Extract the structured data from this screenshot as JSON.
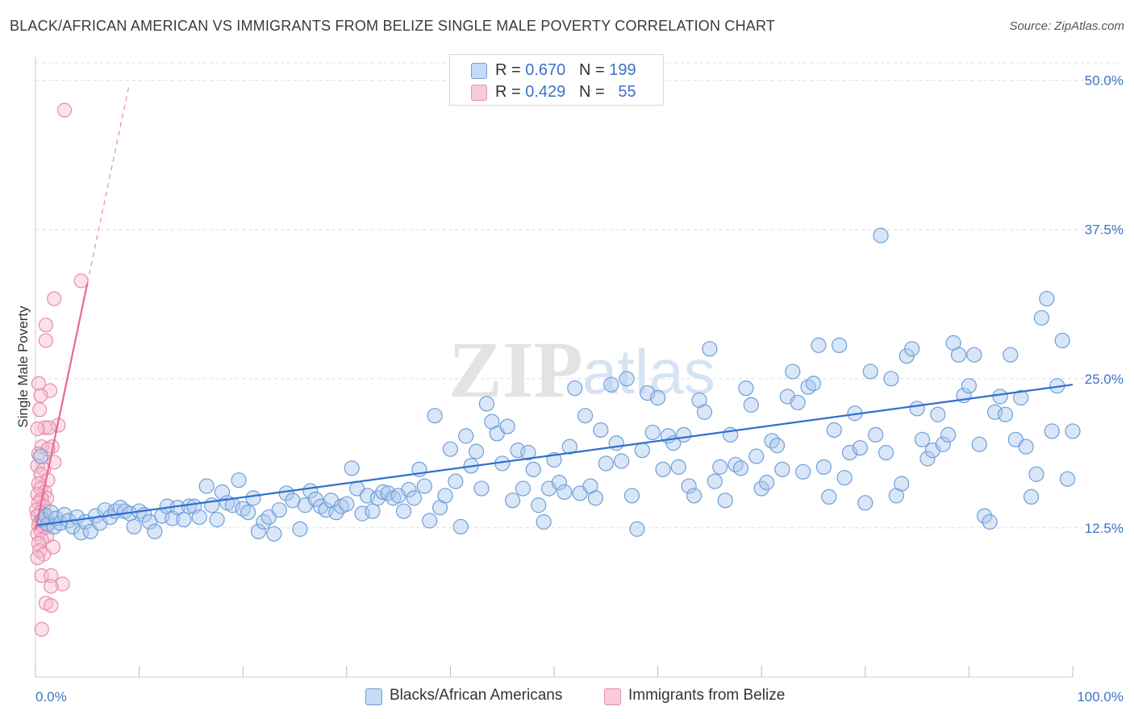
{
  "header": {
    "title": "BLACK/AFRICAN AMERICAN VS IMMIGRANTS FROM BELIZE SINGLE MALE POVERTY CORRELATION CHART",
    "source": "Source: ZipAtlas.com"
  },
  "watermark": {
    "part1": "ZIP",
    "part2": "atlas"
  },
  "legend": {
    "r_label": "R = ",
    "n_label": "N = ",
    "series1": {
      "r": "0.670",
      "n": "199"
    },
    "series2": {
      "r": "0.429",
      "n": "55"
    }
  },
  "colors": {
    "blue_fill": "#aac8ee",
    "blue_stroke": "#6e9fd8",
    "blue_line": "#2f6fcf",
    "pink_fill": "#f6bcd0",
    "pink_stroke": "#e98bab",
    "pink_line": "#e8679a",
    "axis_blue": "#3b73c6"
  },
  "chart_data": {
    "type": "scatter",
    "title": "BLACK/AFRICAN AMERICAN VS IMMIGRANTS FROM BELIZE SINGLE MALE POVERTY CORRELATION CHART",
    "xlabel": "",
    "ylabel": "Single Male Poverty",
    "xlim": [
      0,
      100
    ],
    "ylim": [
      0,
      52
    ],
    "x_tick_labels": [
      "0.0%",
      "100.0%"
    ],
    "y_ticks": [
      12.5,
      25.0,
      37.5,
      50.0
    ],
    "y_tick_labels": [
      "12.5%",
      "25.0%",
      "37.5%",
      "50.0%"
    ],
    "grid": true,
    "series": [
      {
        "name": "Blacks/African Americans",
        "trend": {
          "x": [
            0,
            100
          ],
          "y": [
            12.7,
            24.5
          ]
        },
        "points": [
          [
            0.5,
            18.5
          ],
          [
            0.7,
            13.2
          ],
          [
            1.0,
            13.5
          ],
          [
            1.2,
            12.8
          ],
          [
            1.5,
            13.8
          ],
          [
            1.8,
            12.6
          ],
          [
            2.0,
            13.3
          ],
          [
            2.4,
            12.9
          ],
          [
            2.8,
            13.6
          ],
          [
            3.2,
            13.1
          ],
          [
            3.6,
            12.6
          ],
          [
            4.0,
            13.4
          ],
          [
            4.4,
            12.1
          ],
          [
            4.8,
            13.0
          ],
          [
            5.3,
            12.2
          ],
          [
            5.8,
            13.5
          ],
          [
            6.2,
            12.9
          ],
          [
            6.7,
            14.0
          ],
          [
            7.2,
            13.4
          ],
          [
            7.7,
            13.9
          ],
          [
            8.2,
            14.2
          ],
          [
            8.6,
            13.9
          ],
          [
            9.1,
            13.7
          ],
          [
            9.5,
            12.6
          ],
          [
            10.0,
            13.9
          ],
          [
            10.5,
            13.6
          ],
          [
            11.0,
            13.0
          ],
          [
            11.5,
            12.2
          ],
          [
            12.2,
            13.5
          ],
          [
            12.7,
            14.3
          ],
          [
            13.2,
            13.3
          ],
          [
            13.7,
            14.2
          ],
          [
            14.3,
            13.2
          ],
          [
            14.8,
            14.3
          ],
          [
            15.3,
            14.3
          ],
          [
            15.8,
            13.4
          ],
          [
            16.5,
            16.0
          ],
          [
            17.0,
            14.4
          ],
          [
            17.5,
            13.2
          ],
          [
            18.0,
            15.5
          ],
          [
            18.5,
            14.6
          ],
          [
            19.0,
            14.4
          ],
          [
            19.6,
            16.5
          ],
          [
            20.0,
            14.1
          ],
          [
            20.5,
            13.8
          ],
          [
            21.0,
            15.0
          ],
          [
            21.5,
            12.2
          ],
          [
            22.0,
            13.0
          ],
          [
            22.5,
            13.4
          ],
          [
            23.0,
            12.0
          ],
          [
            23.5,
            14.0
          ],
          [
            24.2,
            15.4
          ],
          [
            24.8,
            14.8
          ],
          [
            25.5,
            12.4
          ],
          [
            26.0,
            14.4
          ],
          [
            26.5,
            15.6
          ],
          [
            27.0,
            14.9
          ],
          [
            27.5,
            14.3
          ],
          [
            28.0,
            14.0
          ],
          [
            28.5,
            14.8
          ],
          [
            29.0,
            13.8
          ],
          [
            29.5,
            14.3
          ],
          [
            30.0,
            14.5
          ],
          [
            30.5,
            17.5
          ],
          [
            31.0,
            15.8
          ],
          [
            31.5,
            13.7
          ],
          [
            32.0,
            15.2
          ],
          [
            32.5,
            13.9
          ],
          [
            33.0,
            15.0
          ],
          [
            33.5,
            15.5
          ],
          [
            34.0,
            15.4
          ],
          [
            34.5,
            15.0
          ],
          [
            35.0,
            15.2
          ],
          [
            35.5,
            13.9
          ],
          [
            36.0,
            15.7
          ],
          [
            36.5,
            15.0
          ],
          [
            37.0,
            17.4
          ],
          [
            37.5,
            16.0
          ],
          [
            38.0,
            13.1
          ],
          [
            38.5,
            21.9
          ],
          [
            39.0,
            14.2
          ],
          [
            39.5,
            15.2
          ],
          [
            40.0,
            19.1
          ],
          [
            40.5,
            16.4
          ],
          [
            41.0,
            12.6
          ],
          [
            41.5,
            20.2
          ],
          [
            42.0,
            17.7
          ],
          [
            42.5,
            18.9
          ],
          [
            43.0,
            15.8
          ],
          [
            43.5,
            22.9
          ],
          [
            44.0,
            21.4
          ],
          [
            44.5,
            20.4
          ],
          [
            45.0,
            17.9
          ],
          [
            45.5,
            21.0
          ],
          [
            46.0,
            14.8
          ],
          [
            46.5,
            19.0
          ],
          [
            47.0,
            15.8
          ],
          [
            47.5,
            18.8
          ],
          [
            48.0,
            17.4
          ],
          [
            48.5,
            14.4
          ],
          [
            49.0,
            13.0
          ],
          [
            49.5,
            15.8
          ],
          [
            50.0,
            18.2
          ],
          [
            50.5,
            16.3
          ],
          [
            51.0,
            15.5
          ],
          [
            51.5,
            19.3
          ],
          [
            52.0,
            24.2
          ],
          [
            52.5,
            15.4
          ],
          [
            53.0,
            21.9
          ],
          [
            53.5,
            16.0
          ],
          [
            54.0,
            15.0
          ],
          [
            54.5,
            20.7
          ],
          [
            55.0,
            17.9
          ],
          [
            55.5,
            24.5
          ],
          [
            56.0,
            19.6
          ],
          [
            56.5,
            18.1
          ],
          [
            57.0,
            25.0
          ],
          [
            57.5,
            15.2
          ],
          [
            58.0,
            12.4
          ],
          [
            58.5,
            19.0
          ],
          [
            59.0,
            23.8
          ],
          [
            59.5,
            20.5
          ],
          [
            60.0,
            23.4
          ],
          [
            60.5,
            17.4
          ],
          [
            61.0,
            20.2
          ],
          [
            61.5,
            19.6
          ],
          [
            62.0,
            17.6
          ],
          [
            62.5,
            20.3
          ],
          [
            63.0,
            16.0
          ],
          [
            63.5,
            15.2
          ],
          [
            64.0,
            23.2
          ],
          [
            64.5,
            22.2
          ],
          [
            65.0,
            27.5
          ],
          [
            65.5,
            16.4
          ],
          [
            66.0,
            17.6
          ],
          [
            66.5,
            14.8
          ],
          [
            67.0,
            20.3
          ],
          [
            67.5,
            17.8
          ],
          [
            68.0,
            17.5
          ],
          [
            68.5,
            24.2
          ],
          [
            69.0,
            22.8
          ],
          [
            69.5,
            18.5
          ],
          [
            70.0,
            15.8
          ],
          [
            70.5,
            16.3
          ],
          [
            71.0,
            19.8
          ],
          [
            71.5,
            19.4
          ],
          [
            72.0,
            17.4
          ],
          [
            72.5,
            23.5
          ],
          [
            73.0,
            25.6
          ],
          [
            73.5,
            23.0
          ],
          [
            74.0,
            17.2
          ],
          [
            74.5,
            24.3
          ],
          [
            75.0,
            24.6
          ],
          [
            75.5,
            27.8
          ],
          [
            76.0,
            17.6
          ],
          [
            76.5,
            15.1
          ],
          [
            77.0,
            20.7
          ],
          [
            77.5,
            27.8
          ],
          [
            78.0,
            16.7
          ],
          [
            78.5,
            18.8
          ],
          [
            79.0,
            22.1
          ],
          [
            79.5,
            19.2
          ],
          [
            80.0,
            14.6
          ],
          [
            80.5,
            25.6
          ],
          [
            81.0,
            20.3
          ],
          [
            81.5,
            37.0
          ],
          [
            82.0,
            18.8
          ],
          [
            82.5,
            25.0
          ],
          [
            83.0,
            15.2
          ],
          [
            83.5,
            16.2
          ],
          [
            84.0,
            26.9
          ],
          [
            84.5,
            27.5
          ],
          [
            85.0,
            22.5
          ],
          [
            85.5,
            19.9
          ],
          [
            86.0,
            18.3
          ],
          [
            86.5,
            19.0
          ],
          [
            87.0,
            22.0
          ],
          [
            87.5,
            19.5
          ],
          [
            88.0,
            20.3
          ],
          [
            88.5,
            28.0
          ],
          [
            89.0,
            27.0
          ],
          [
            89.5,
            23.6
          ],
          [
            90.0,
            24.4
          ],
          [
            90.5,
            27.0
          ],
          [
            91.0,
            19.5
          ],
          [
            91.5,
            13.5
          ],
          [
            92.0,
            13.0
          ],
          [
            92.5,
            22.2
          ],
          [
            93.0,
            23.5
          ],
          [
            93.5,
            22.0
          ],
          [
            94.0,
            27.0
          ],
          [
            94.5,
            19.9
          ],
          [
            95.0,
            23.4
          ],
          [
            95.5,
            19.3
          ],
          [
            96.0,
            15.1
          ],
          [
            96.5,
            17.0
          ],
          [
            97.0,
            30.1
          ],
          [
            97.5,
            31.7
          ],
          [
            98.0,
            20.6
          ],
          [
            98.5,
            24.4
          ],
          [
            99.0,
            28.2
          ],
          [
            99.5,
            16.6
          ],
          [
            100.0,
            20.6
          ]
        ]
      },
      {
        "name": "Immigrants from Belize",
        "trend": {
          "x": [
            0,
            5
          ],
          "y": [
            12.3,
            33.0
          ]
        },
        "trend_dashed_extension": {
          "x": [
            5,
            9
          ],
          "y": [
            33.0,
            49.5
          ]
        },
        "points": [
          [
            2.8,
            47.5
          ],
          [
            4.4,
            33.2
          ],
          [
            1.8,
            31.7
          ],
          [
            1.0,
            29.5
          ],
          [
            1.0,
            28.2
          ],
          [
            0.3,
            24.6
          ],
          [
            1.4,
            24.0
          ],
          [
            0.5,
            23.6
          ],
          [
            0.4,
            22.4
          ],
          [
            2.2,
            21.1
          ],
          [
            0.9,
            20.9
          ],
          [
            1.3,
            20.9
          ],
          [
            0.2,
            20.8
          ],
          [
            1.6,
            19.3
          ],
          [
            0.6,
            19.3
          ],
          [
            1.2,
            19.1
          ],
          [
            0.3,
            18.7
          ],
          [
            1.8,
            18.0
          ],
          [
            0.2,
            17.7
          ],
          [
            0.8,
            17.4
          ],
          [
            0.5,
            17.0
          ],
          [
            1.2,
            16.5
          ],
          [
            0.3,
            16.2
          ],
          [
            0.5,
            15.8
          ],
          [
            0.9,
            15.5
          ],
          [
            0.2,
            15.3
          ],
          [
            1.1,
            15.0
          ],
          [
            0.6,
            14.9
          ],
          [
            0.3,
            14.6
          ],
          [
            0.8,
            14.3
          ],
          [
            0.1,
            14.0
          ],
          [
            0.5,
            13.8
          ],
          [
            1.0,
            13.6
          ],
          [
            0.2,
            13.5
          ],
          [
            0.7,
            13.2
          ],
          [
            0.4,
            13.0
          ],
          [
            1.3,
            12.9
          ],
          [
            0.3,
            12.7
          ],
          [
            0.9,
            12.5
          ],
          [
            0.5,
            12.3
          ],
          [
            0.2,
            12.0
          ],
          [
            1.1,
            11.8
          ],
          [
            0.6,
            11.5
          ],
          [
            0.3,
            11.2
          ],
          [
            1.7,
            10.9
          ],
          [
            0.4,
            10.6
          ],
          [
            0.8,
            10.3
          ],
          [
            0.2,
            10.0
          ],
          [
            0.6,
            8.5
          ],
          [
            1.5,
            8.5
          ],
          [
            2.6,
            7.8
          ],
          [
            1.5,
            7.6
          ],
          [
            1.0,
            6.2
          ],
          [
            1.5,
            6.0
          ],
          [
            0.6,
            4.0
          ]
        ]
      }
    ]
  },
  "bottom_legend": {
    "items": [
      "Blacks/African Americans",
      "Immigrants from Belize"
    ]
  }
}
